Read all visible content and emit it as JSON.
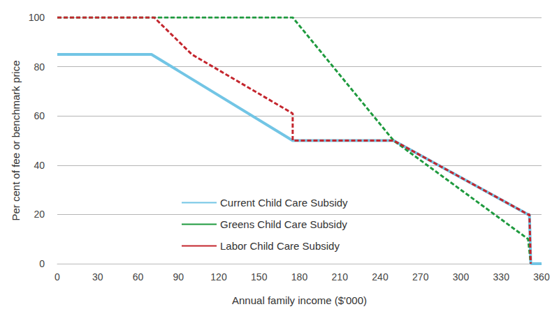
{
  "chart_data": {
    "type": "line",
    "x_label": "Annual family income ($'000)",
    "y_label": "Per cent of fee or benchmark price",
    "xlim": [
      0,
      360
    ],
    "xticks": [
      0,
      30,
      60,
      90,
      120,
      150,
      180,
      210,
      240,
      270,
      300,
      330,
      360
    ],
    "ylim": [
      0,
      100
    ],
    "yticks": [
      0,
      20,
      40,
      60,
      80,
      100
    ],
    "grid": true,
    "legend": "lower center",
    "series": [
      {
        "name": "Current Child Care Subsidy",
        "color": "#72c5e5",
        "line_style": "solid",
        "x": [
          0,
          70,
          175,
          250,
          350,
          351,
          352,
          360
        ],
        "values": [
          85,
          85,
          50,
          50,
          20,
          20,
          0,
          0
        ]
      },
      {
        "name": "Greens Child Care Subsidy",
        "color": "#1e9a3e",
        "line_style": "dashed",
        "x": [
          0,
          175,
          250,
          350,
          352
        ],
        "values": [
          100,
          100,
          50,
          10,
          0
        ]
      },
      {
        "name": "Labor Child Care Subsidy",
        "color": "#c4262e",
        "line_style": "dashed",
        "x": [
          0,
          72,
          100,
          175,
          175,
          250,
          350,
          351,
          352
        ],
        "values": [
          100,
          100,
          85,
          61,
          50,
          50,
          20,
          20,
          0
        ]
      }
    ]
  }
}
